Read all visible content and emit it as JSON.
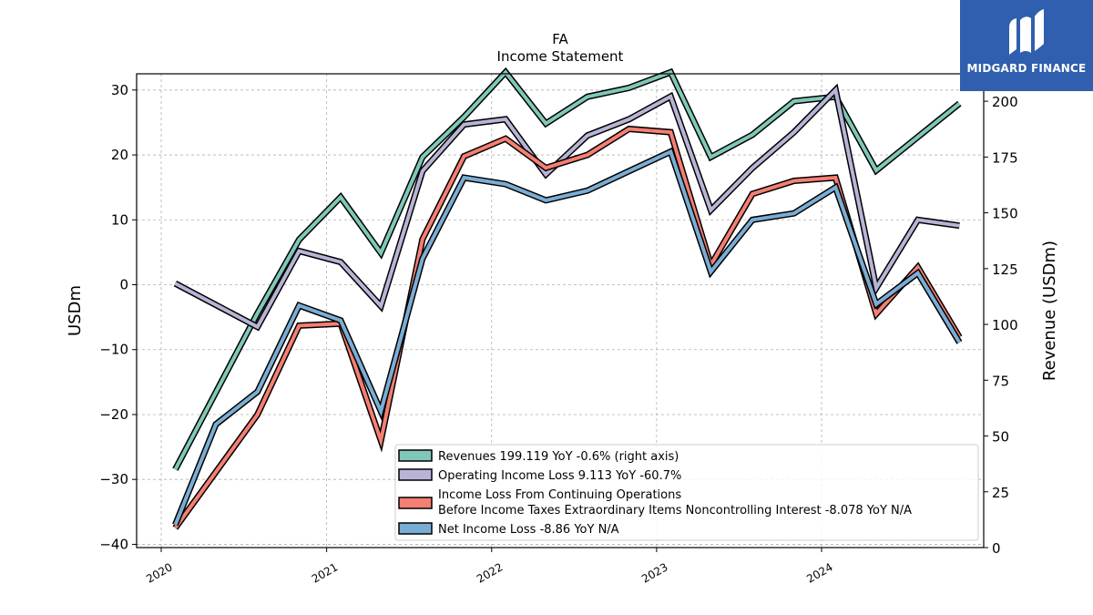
{
  "logo": {
    "text": "MIDGARD FINANCE"
  },
  "chart_data": {
    "type": "line",
    "title": "FA",
    "subtitle": "Income Statement",
    "ylabel_left": "USDm",
    "ylabel_right": "Revenue (USDm)",
    "ylim_left": [
      -40.5,
      32.5
    ],
    "ylim_right": [
      0,
      212.3
    ],
    "yticks_left": [
      30,
      20,
      10,
      0,
      -10,
      -20,
      -30,
      -40
    ],
    "yticks_left_labels": [
      "30",
      "20",
      "10",
      "0",
      "−10",
      "−20",
      "−30",
      "−40"
    ],
    "yticks_right": [
      0,
      25,
      50,
      75,
      100,
      125,
      150,
      175,
      200
    ],
    "x_ticks": [
      "2020",
      "2021",
      "2022",
      "2023",
      "2024"
    ],
    "grid": true,
    "legend_position": "lower right",
    "x": [
      "2020-02",
      "2020-05",
      "2020-08",
      "2020-11",
      "2021-02",
      "2021-05",
      "2021-08",
      "2021-11",
      "2022-02",
      "2022-05",
      "2022-08",
      "2022-11",
      "2023-02",
      "2023-05",
      "2023-08",
      "2023-11",
      "2024-02",
      "2024-05",
      "2024-08",
      "2024-11"
    ],
    "series": [
      {
        "name": "Revenues",
        "legend_label": "Revenues  199.119 YoY -0.6% (right axis)",
        "axis": "right",
        "color": "#7fc8b8",
        "values": [
          35,
          null,
          105,
          138,
          157,
          132,
          175,
          193,
          213,
          190,
          202,
          206,
          213,
          175,
          185,
          200,
          202,
          169,
          184,
          199
        ]
      },
      {
        "name": "Operating Income Loss",
        "legend_label": "Operating Income Loss  9.113 YoY -60.7%",
        "axis": "left",
        "color": "#b8b4d6",
        "values": [
          0.2,
          null,
          -6.5,
          5.2,
          3.5,
          -3.3,
          17.5,
          24.7,
          25.5,
          17.0,
          23.0,
          25.5,
          29.0,
          11.5,
          18.0,
          23.5,
          30.0,
          -0.5,
          10.0,
          9.1
        ]
      },
      {
        "name": "Income Loss From Continuing Operations Before Income Taxes Extraordinary Items Noncontrolling Interest",
        "legend_label_line1": "Income Loss From Continuing Operations",
        "legend_label_line2": "Before Income Taxes Extraordinary Items Noncontrolling Interest  -8.078 YoY N/A",
        "axis": "left",
        "color": "#f47f72",
        "values": [
          -37.5,
          null,
          -20.0,
          -6.3,
          -6.0,
          -24.0,
          7.0,
          19.8,
          22.5,
          18.0,
          20.0,
          24.0,
          23.5,
          3.0,
          14.0,
          16.0,
          16.5,
          -4.5,
          2.7,
          -8.1
        ]
      },
      {
        "name": "Net Income Loss",
        "legend_label": "Net Income Loss  -8.86 YoY N/A",
        "axis": "left",
        "color": "#7aadd4",
        "values": [
          -37.0,
          -21.5,
          -16.5,
          -3.2,
          -5.5,
          -19.5,
          4.0,
          16.5,
          15.5,
          13.0,
          14.5,
          17.5,
          20.5,
          2.0,
          10.0,
          11.0,
          15.0,
          -3.0,
          1.8,
          -8.9
        ]
      }
    ]
  }
}
